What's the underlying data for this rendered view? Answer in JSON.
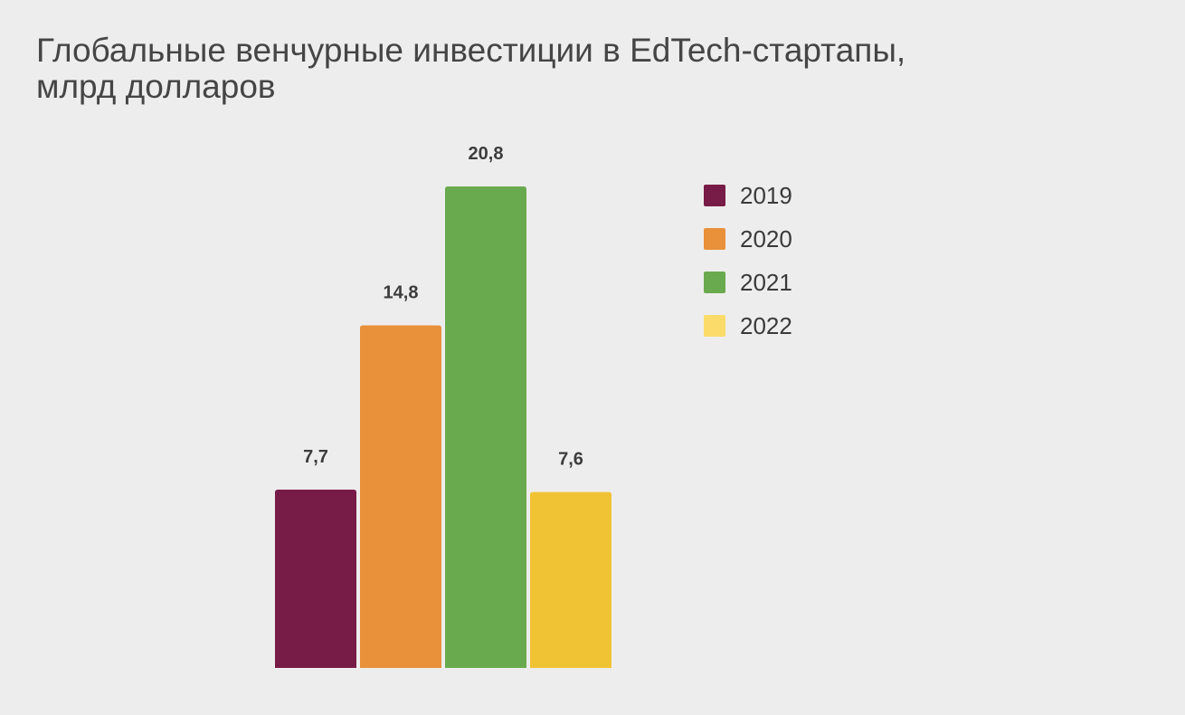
{
  "title": {
    "line1": "Глобальные венчурные инвестиции в EdTech-стартапы,",
    "line2": "млрд долларов"
  },
  "chart_data": {
    "type": "bar",
    "title": "Глобальные венчурные инвестиции в EdTech-стартапы, млрд долларов",
    "categories": [
      "2019",
      "2020",
      "2021",
      "2022"
    ],
    "values": [
      7.7,
      14.8,
      20.8,
      7.6
    ],
    "data_labels": [
      "7,7",
      "14,8",
      "20,8",
      "7,6"
    ],
    "colors": [
      "#771b47",
      "#e8903a",
      "#6aaa4e",
      "#f0c335"
    ],
    "ylim": [
      0,
      20.8
    ],
    "grid": false,
    "legend_position": "right",
    "legend": [
      {
        "label": "2019",
        "color": "#771b47"
      },
      {
        "label": "2020",
        "color": "#e8903a"
      },
      {
        "label": "2021",
        "color": "#6aaa4e"
      },
      {
        "label": "2022",
        "color": "#fbdc6a"
      }
    ]
  }
}
